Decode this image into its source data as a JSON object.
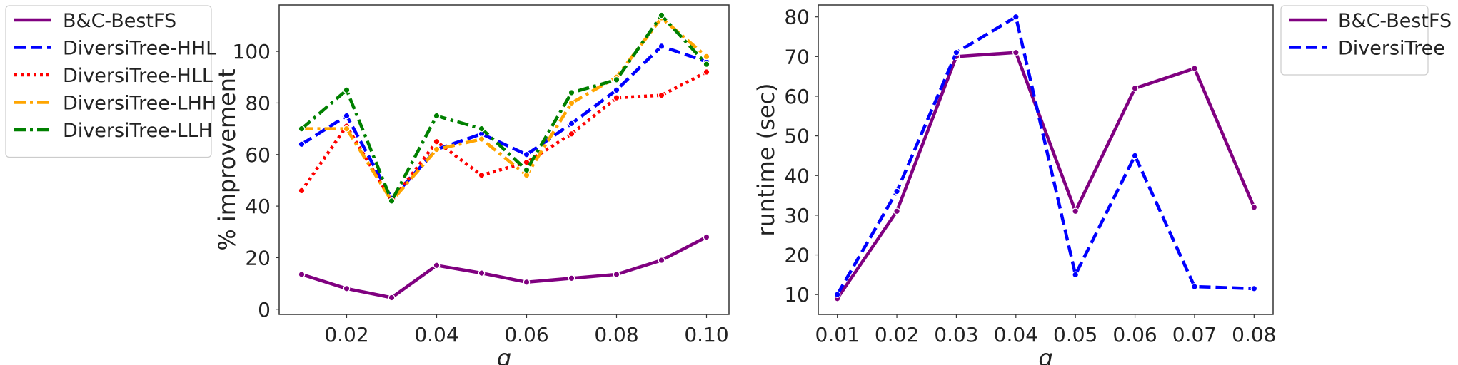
{
  "chart_data": [
    {
      "type": "line",
      "xlabel": "q",
      "ylabel": "% improvement",
      "xlim": [
        0.005,
        0.105
      ],
      "ylim": [
        -2,
        118
      ],
      "xticks": [
        0.02,
        0.04,
        0.06,
        0.08,
        0.1
      ],
      "xtick_labels": [
        "0.02",
        "0.04",
        "0.06",
        "0.08",
        "0.10"
      ],
      "yticks": [
        0,
        20,
        40,
        60,
        80,
        100
      ],
      "ytick_labels": [
        "0",
        "20",
        "40",
        "60",
        "80",
        "100"
      ],
      "grid": false,
      "legend_position": "outside-left",
      "x": [
        0.01,
        0.02,
        0.03,
        0.04,
        0.05,
        0.06,
        0.07,
        0.08,
        0.09,
        0.1
      ],
      "series": [
        {
          "name": "B&C-BestFS",
          "color": "#800080",
          "dash": "solid",
          "values": [
            13.5,
            8,
            4.5,
            17,
            14,
            10.5,
            12,
            13.5,
            19,
            28
          ]
        },
        {
          "name": "DiversiTree-HHL",
          "color": "#0000ff",
          "dash": "dashed",
          "values": [
            64,
            75,
            43,
            62,
            68,
            60,
            72,
            85,
            102,
            96
          ]
        },
        {
          "name": "DiversiTree-HLL",
          "color": "#ff0000",
          "dash": "dotted",
          "values": [
            46,
            71,
            42,
            65,
            52,
            57,
            68,
            82,
            83,
            92
          ]
        },
        {
          "name": "DiversiTree-LHH",
          "color": "#ffa500",
          "dash": "dashdot",
          "values": [
            70,
            70,
            42,
            62,
            66,
            52,
            80,
            90,
            113,
            98
          ]
        },
        {
          "name": "DiversiTree-LLH",
          "color": "#008000",
          "dash": "dashdot",
          "values": [
            70,
            85,
            42,
            75,
            70,
            54,
            84,
            89,
            114,
            95
          ]
        }
      ]
    },
    {
      "type": "line",
      "xlabel": "q",
      "ylabel": "runtime (sec)",
      "xlim": [
        0.0068,
        0.0832
      ],
      "ylim": [
        5,
        83
      ],
      "xticks": [
        0.01,
        0.02,
        0.03,
        0.04,
        0.05,
        0.06,
        0.07,
        0.08
      ],
      "xtick_labels": [
        "0.01",
        "0.02",
        "0.03",
        "0.04",
        "0.05",
        "0.06",
        "0.07",
        "0.08"
      ],
      "yticks": [
        10,
        20,
        30,
        40,
        50,
        60,
        70,
        80
      ],
      "ytick_labels": [
        "10",
        "20",
        "30",
        "40",
        "50",
        "60",
        "70",
        "80"
      ],
      "grid": false,
      "legend_position": "outside-right",
      "x": [
        0.01,
        0.02,
        0.03,
        0.04,
        0.05,
        0.06,
        0.07,
        0.08
      ],
      "series": [
        {
          "name": "B&C-BestFS",
          "color": "#800080",
          "dash": "solid",
          "values": [
            9,
            31,
            70,
            71,
            31,
            62,
            67,
            32
          ]
        },
        {
          "name": "DiversiTree",
          "color": "#0000ff",
          "dash": "dashed",
          "values": [
            10,
            36,
            71,
            80,
            15,
            45,
            12,
            11.5
          ]
        }
      ]
    }
  ]
}
